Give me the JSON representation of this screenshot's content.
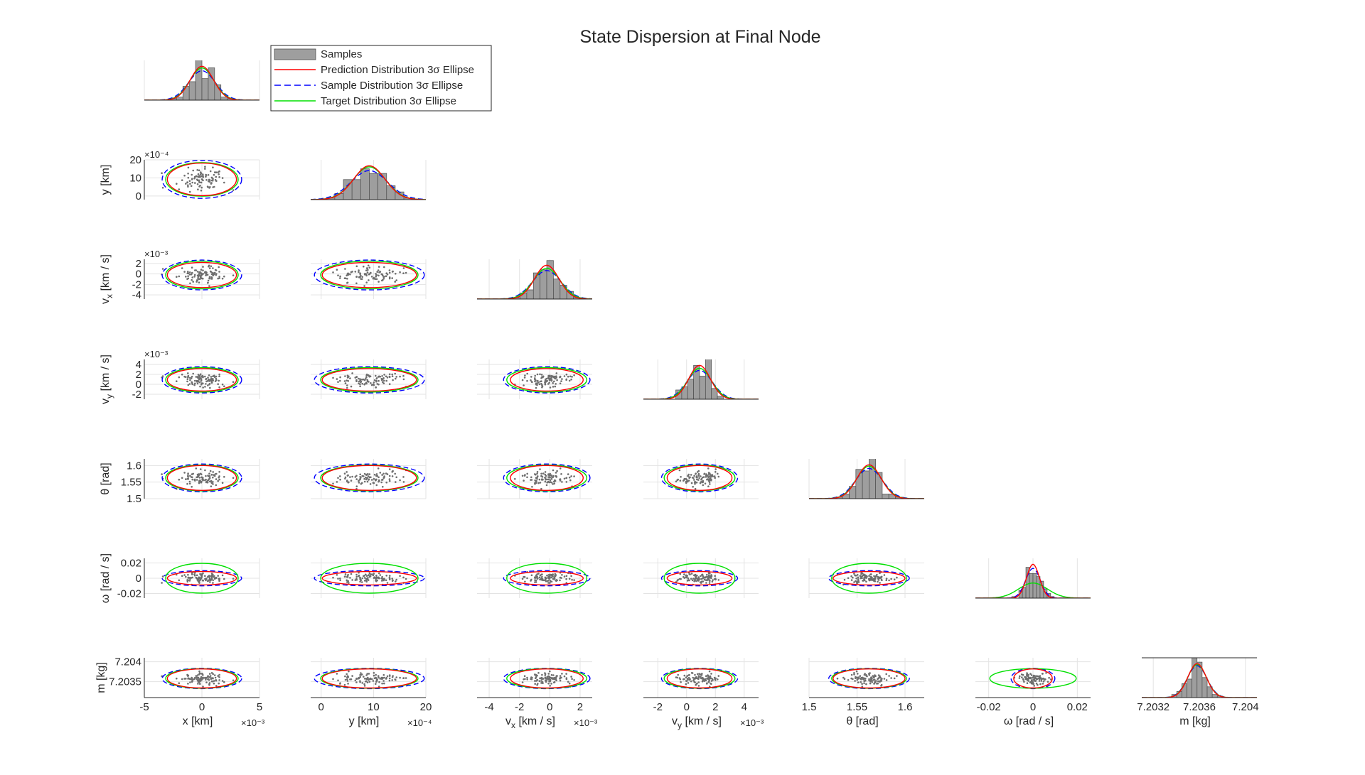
{
  "chart_data": {
    "type": "scatter",
    "title": "State Dispersion at Final Node",
    "variables": [
      {
        "key": "x",
        "label": "x [km]",
        "range": [
          -0.005,
          0.005
        ],
        "mean": 0.0,
        "sigma_pred": 0.001,
        "sigma_samp": 0.00115,
        "sigma_tgt": 0.00105,
        "ticks": [
          {
            "v": -0.005,
            "t": "-5"
          },
          {
            "v": 0,
            "t": "0"
          },
          {
            "v": 0.005,
            "t": "5"
          }
        ],
        "exponent": "×10⁻³"
      },
      {
        "key": "y",
        "label": "y [km]",
        "range": [
          -0.0002,
          0.002
        ],
        "mean": 0.00092,
        "sigma_pred": 0.0003,
        "sigma_samp": 0.00035,
        "sigma_tgt": 0.00031,
        "ticks": [
          {
            "v": 0,
            "t": "0"
          },
          {
            "v": 0.001,
            "t": "10"
          },
          {
            "v": 0.002,
            "t": "20"
          }
        ],
        "exponent": "×10⁻⁴"
      },
      {
        "key": "vx",
        "label": "v_x [km / s]",
        "range": [
          -0.0048,
          0.0028
        ],
        "mean": -0.0002,
        "sigma_pred": 0.0008,
        "sigma_samp": 0.00095,
        "sigma_tgt": 0.00088,
        "ticks": [
          {
            "v": -0.004,
            "t": "-4"
          },
          {
            "v": -0.002,
            "t": "-2"
          },
          {
            "v": 0,
            "t": "0"
          },
          {
            "v": 0.002,
            "t": "2"
          }
        ],
        "exponent": "×10⁻³"
      },
      {
        "key": "vy",
        "label": "v_y [km / s]",
        "range": [
          -0.003,
          0.005
        ],
        "mean": 0.0009,
        "sigma_pred": 0.00075,
        "sigma_samp": 0.00088,
        "sigma_tgt": 0.00082,
        "ticks": [
          {
            "v": -0.002,
            "t": "-2"
          },
          {
            "v": 0,
            "t": "0"
          },
          {
            "v": 0.002,
            "t": "2"
          },
          {
            "v": 0.004,
            "t": "4"
          }
        ],
        "exponent": "×10⁻³"
      },
      {
        "key": "theta",
        "label": "θ [rad]",
        "range": [
          1.5,
          1.62
        ],
        "mean": 1.5625,
        "sigma_pred": 0.0125,
        "sigma_samp": 0.014,
        "sigma_tgt": 0.013,
        "ticks": [
          {
            "v": 1.5,
            "t": "1.5"
          },
          {
            "v": 1.55,
            "t": "1.55"
          },
          {
            "v": 1.6,
            "t": "1.6"
          }
        ],
        "exponent": ""
      },
      {
        "key": "omega",
        "label": "ω [rad / s]",
        "range": [
          -0.026,
          0.026
        ],
        "mean": 0.0,
        "sigma_pred": 0.0029,
        "sigma_samp": 0.0033,
        "sigma_tgt": 0.0065,
        "ticks": [
          {
            "v": -0.02,
            "t": "-0.02"
          },
          {
            "v": 0,
            "t": "0"
          },
          {
            "v": 0.02,
            "t": "0.02"
          }
        ],
        "exponent": ""
      },
      {
        "key": "m",
        "label": "m [kg]",
        "range": [
          7.2031,
          7.2041
        ],
        "mean": 7.20358,
        "sigma_pred": 8e-05,
        "sigma_samp": 8.5e-05,
        "sigma_tgt": 8.2e-05,
        "ticks": [
          {
            "v": 7.2032,
            "t": "7.2032"
          },
          {
            "v": 7.2036,
            "t": "7.2036"
          },
          {
            "v": 7.204,
            "t": "7.204"
          }
        ],
        "exponent": ""
      }
    ],
    "y_axis_ticks": {
      "y": [
        {
          "v": 0,
          "t": "0"
        },
        {
          "v": 0.001,
          "t": "10"
        },
        {
          "v": 0.002,
          "t": "20"
        }
      ],
      "vx": [
        {
          "v": -0.004,
          "t": "-4"
        },
        {
          "v": -0.002,
          "t": "-2"
        },
        {
          "v": 0,
          "t": "0"
        },
        {
          "v": 0.002,
          "t": "2"
        }
      ],
      "vy": [
        {
          "v": -0.002,
          "t": "-2"
        },
        {
          "v": 0,
          "t": "0"
        },
        {
          "v": 0.002,
          "t": "2"
        },
        {
          "v": 0.004,
          "t": "4"
        }
      ],
      "theta": [
        {
          "v": 1.5,
          "t": "1.5"
        },
        {
          "v": 1.55,
          "t": "1.55"
        },
        {
          "v": 1.6,
          "t": "1.6"
        }
      ],
      "omega": [
        {
          "v": -0.02,
          "t": "-0.02"
        },
        {
          "v": 0,
          "t": "0"
        },
        {
          "v": 0.02,
          "t": "0.02"
        }
      ],
      "m": [
        {
          "v": 7.2035,
          "t": "7.2035"
        },
        {
          "v": 7.204,
          "t": "7.204"
        }
      ]
    },
    "y_axis_exponents": {
      "y": "×10⁻⁴",
      "vx": "×10⁻³",
      "vy": "×10⁻³"
    },
    "sample_count": 100,
    "histogram_bins": 12,
    "legend": {
      "placement": "top-left",
      "entries": [
        {
          "label": "Samples",
          "style": "gray-bar"
        },
        {
          "label": "Prediction Distribution 3σ Ellipse",
          "style": "red-solid"
        },
        {
          "label": "Sample Distribution 3σ Ellipse",
          "style": "blue-dashed"
        },
        {
          "label": "Target Distribution 3σ Ellipse",
          "style": "green-solid"
        }
      ]
    },
    "grid": true
  },
  "colors": {
    "samples_fill": "#9e9e9e",
    "samples_edge": "#4d4d4d",
    "points": "#6e6e6e",
    "prediction": "#ff0000",
    "sample": "#0000ff",
    "target": "#00e000",
    "grid": "#e3e3e3",
    "axis": "#262626"
  }
}
